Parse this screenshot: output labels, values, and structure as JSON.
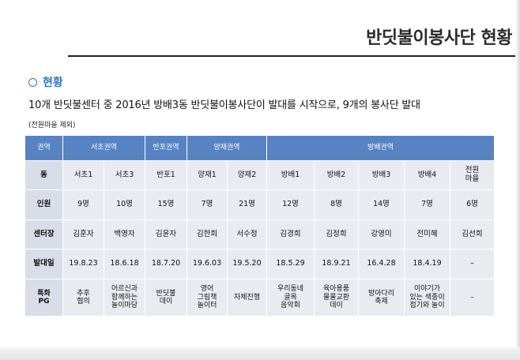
{
  "title": "반딧불이봉사단 현황",
  "section": "현황",
  "description": "10개 반딧불센터 중 2016년 방배3동 반딧불이봉사단이 발대를 시작으로, 9개의 봉사단 발대",
  "note": "(전원마을 제외)",
  "table": {
    "header": {
      "label": "권역",
      "groups": [
        {
          "label": "서초권역"
        },
        {
          "label": "반포권역"
        },
        {
          "label": "양재권역"
        },
        {
          "label": "방배권역"
        }
      ]
    },
    "rows": [
      {
        "label": "동",
        "cells": [
          "서초1",
          "서초3",
          "반포1",
          "양재1",
          "양재2",
          "방배1",
          "방배2",
          "방배3",
          "방배4",
          "전원\n마을"
        ]
      },
      {
        "label": "인원",
        "cells": [
          "9명",
          "10명",
          "15명",
          "7명",
          "21명",
          "12명",
          "8명",
          "14명",
          "7명",
          "6명"
        ]
      },
      {
        "label": "센터장",
        "cells": [
          "김훈자",
          "백영자",
          "김윤자",
          "김한희",
          "서수정",
          "김경희",
          "김정희",
          "강영미",
          "전미혜",
          "김선희"
        ]
      },
      {
        "label": "발대일",
        "cells": [
          "19.8.23",
          "18.6.18",
          "18.7.20",
          "19.6.03",
          "19.5.20",
          "18.5.29",
          "18.9.21",
          "16.4.28",
          "18.4.19",
          "–"
        ]
      },
      {
        "label": "특화\nPG",
        "cells": [
          "추후\n협의",
          "어르신과\n함께하는\n놀이마당",
          "반딧불\n데이",
          "영어\n그림책\n놀이터",
          "자체진행",
          "우리동네\n골목\n음악회",
          "육아용품\n물물교환\n데이",
          "방아다리\n축제",
          "이야기가\n있는 색종이\n접기와 놀이",
          "–"
        ]
      }
    ]
  }
}
